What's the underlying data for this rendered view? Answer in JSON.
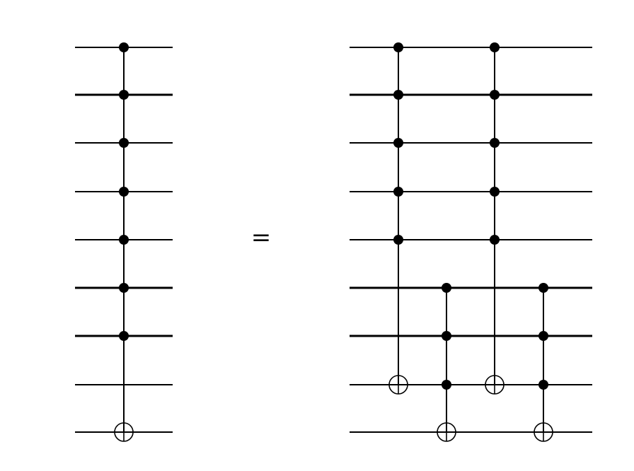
{
  "diagram": {
    "type": "quantum-circuit-identity",
    "equals_symbol": "=",
    "qubit_count": 9,
    "thick_wires": [
      1,
      5,
      6
    ],
    "left_circuit": {
      "gates": [
        {
          "type": "multi-controlled-not",
          "controls": [
            0,
            1,
            2,
            3,
            4,
            5,
            6
          ],
          "target": 8
        }
      ]
    },
    "right_circuit": {
      "gates": [
        {
          "type": "multi-controlled-not",
          "controls": [
            0,
            1,
            2,
            3,
            4
          ],
          "target": 7
        },
        {
          "type": "toffoli",
          "controls": [
            5,
            6,
            7
          ],
          "target": 8
        },
        {
          "type": "multi-controlled-not",
          "controls": [
            0,
            1,
            2,
            3,
            4
          ],
          "target": 7
        },
        {
          "type": "toffoli",
          "controls": [
            5,
            6,
            7
          ],
          "target": 8
        }
      ]
    }
  }
}
